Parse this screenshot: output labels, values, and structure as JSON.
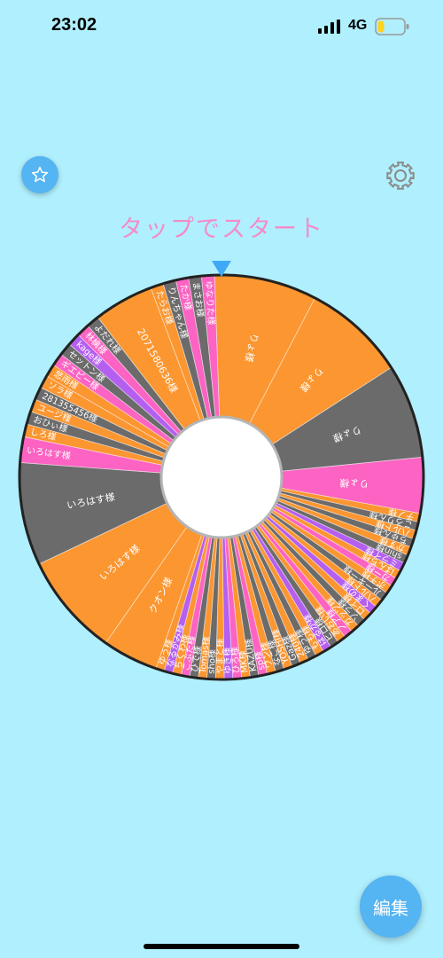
{
  "status_bar": {
    "time": "23:02",
    "network": "4G",
    "battery_level": 0.25,
    "battery_color": "#ffd21e"
  },
  "toolbar": {
    "favorite_icon": "star-icon",
    "settings_icon": "gear-icon"
  },
  "prompt": {
    "start_text": "タップでスタート",
    "color": "#f48bc8"
  },
  "wheel": {
    "pointer_color": "#3fa9f5",
    "colors": {
      "orange": "#fb9630",
      "gray": "#6b6b6b",
      "pink": "#fc63c2",
      "purple": "#b45ff0"
    },
    "segments": [
      {
        "label": "りょ様",
        "color": "orange",
        "weight": 24
      },
      {
        "label": "りょ様",
        "color": "orange",
        "weight": 24
      },
      {
        "label": "りょ様",
        "color": "gray",
        "weight": 22
      },
      {
        "label": "りょ様",
        "color": "pink",
        "weight": 13
      },
      {
        "label": "チノ様",
        "color": "orange",
        "weight": 2
      },
      {
        "label": "ころりん様",
        "color": "gray",
        "weight": 2
      },
      {
        "label": "ハルト様",
        "color": "orange",
        "weight": 2
      },
      {
        "label": "ちゅん様",
        "color": "gray",
        "weight": 2
      },
      {
        "label": "かず様",
        "color": "orange",
        "weight": 2
      },
      {
        "label": "shin様",
        "color": "gray",
        "weight": 2
      },
      {
        "label": "ミライ様",
        "color": "purple",
        "weight": 2
      },
      {
        "label": "ばんち様",
        "color": "orange",
        "weight": 2
      },
      {
        "label": "カー様",
        "color": "pink",
        "weight": 2
      },
      {
        "label": "ポチ様",
        "color": "orange",
        "weight": 2
      },
      {
        "label": "ルーキー様",
        "color": "gray",
        "weight": 2
      },
      {
        "label": "ハルト様",
        "color": "orange",
        "weight": 2
      },
      {
        "label": "くまの様",
        "color": "purple",
        "weight": 2
      },
      {
        "label": "ロイ様",
        "color": "orange",
        "weight": 2
      },
      {
        "label": "ソラ様",
        "color": "gray",
        "weight": 2
      },
      {
        "label": "ガッツ様",
        "color": "orange",
        "weight": 2
      },
      {
        "label": "ノア様",
        "color": "pink",
        "weight": 2
      },
      {
        "label": "あおい様",
        "color": "orange",
        "weight": 2
      },
      {
        "label": "ヒロ様",
        "color": "gray",
        "weight": 2
      },
      {
        "label": "はるか様",
        "color": "purple",
        "weight": 2
      },
      {
        "label": "もも様",
        "color": "orange",
        "weight": 2
      },
      {
        "label": "ゆう様",
        "color": "gray",
        "weight": 2
      },
      {
        "label": "240様",
        "color": "orange",
        "weight": 2
      },
      {
        "label": "Gaz様",
        "color": "gray",
        "weight": 2
      },
      {
        "label": "YOSHI様",
        "color": "orange",
        "weight": 2
      },
      {
        "label": "なご様",
        "color": "gray",
        "weight": 2
      },
      {
        "label": "ワン様",
        "color": "orange",
        "weight": 2
      },
      {
        "label": "sp様",
        "color": "pink",
        "weight": 2
      },
      {
        "label": "KAZU様",
        "color": "gray",
        "weight": 2
      },
      {
        "label": "MK様",
        "color": "orange",
        "weight": 2
      },
      {
        "label": "ひろ様",
        "color": "pink",
        "weight": 2
      },
      {
        "label": "ゆき様",
        "color": "purple",
        "weight": 2
      },
      {
        "label": "やまと様",
        "color": "orange",
        "weight": 2
      },
      {
        "label": "sho様",
        "color": "gray",
        "weight": 2
      },
      {
        "label": "Tomas様",
        "color": "orange",
        "weight": 2
      },
      {
        "label": "ひで様",
        "color": "gray",
        "weight": 2
      },
      {
        "label": "こぶた様",
        "color": "pink",
        "weight": 2
      },
      {
        "label": "ちくわ様",
        "color": "orange",
        "weight": 2
      },
      {
        "label": "なるかみ様",
        "color": "purple",
        "weight": 2
      },
      {
        "label": "ゆう様",
        "color": "orange",
        "weight": 2
      },
      {
        "label": "クオン様",
        "color": "orange",
        "weight": 13
      },
      {
        "label": "いろはす様",
        "color": "orange",
        "weight": 24
      },
      {
        "label": "いろはす様",
        "color": "gray",
        "weight": 24
      },
      {
        "label": "いろはす様",
        "color": "pink",
        "weight": 6
      },
      {
        "label": "しろ様",
        "color": "orange",
        "weight": 3
      },
      {
        "label": "おひぃ様",
        "color": "gray",
        "weight": 3
      },
      {
        "label": "ユージ様",
        "color": "orange",
        "weight": 3
      },
      {
        "label": "281355456様",
        "color": "gray",
        "weight": 3
      },
      {
        "label": "ソラ様",
        "color": "orange",
        "weight": 3
      },
      {
        "label": "悲雨様",
        "color": "orange",
        "weight": 3
      },
      {
        "label": "ギエピー様",
        "color": "pink",
        "weight": 3
      },
      {
        "label": "セットン様",
        "color": "gray",
        "weight": 3
      },
      {
        "label": "kage様",
        "color": "purple",
        "weight": 3
      },
      {
        "label": "林檎様",
        "color": "pink",
        "weight": 3
      },
      {
        "label": "よだれ様",
        "color": "gray",
        "weight": 3
      },
      {
        "label": "20715806​36様",
        "color": "orange",
        "weight": 14
      },
      {
        "label": "たらお様",
        "color": "orange",
        "weight": 3
      },
      {
        "label": "りんちゃん様",
        "color": "gray",
        "weight": 3
      },
      {
        "label": "たか様",
        "color": "pink",
        "weight": 3
      },
      {
        "label": "まさお様",
        "color": "gray",
        "weight": 3
      },
      {
        "label": "ゆなりた様",
        "color": "pink",
        "weight": 3
      }
    ]
  },
  "edit_button": {
    "label": "編集",
    "color": "#55b4f2"
  }
}
